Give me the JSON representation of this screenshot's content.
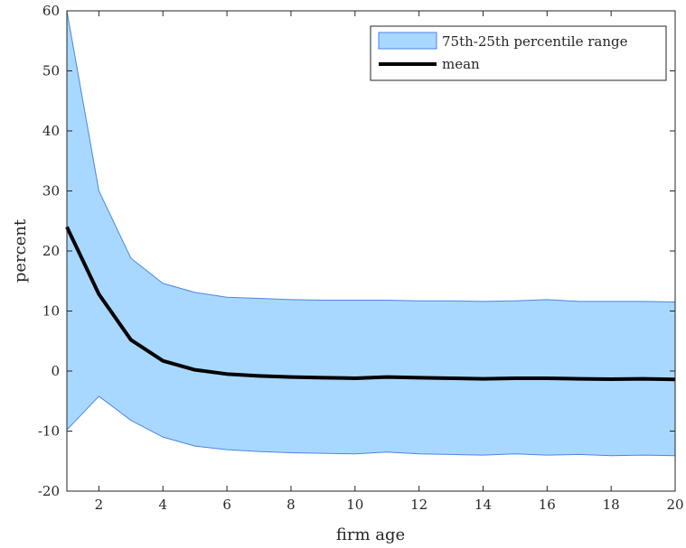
{
  "chart_data": {
    "type": "area",
    "title": "",
    "xlabel": "firm age",
    "ylabel": "percent",
    "xlim": [
      1,
      20
    ],
    "ylim": [
      -20,
      60
    ],
    "xticks": [
      2,
      4,
      6,
      8,
      10,
      12,
      14,
      16,
      18,
      20
    ],
    "yticks": [
      -20,
      -10,
      0,
      10,
      20,
      30,
      40,
      50,
      60
    ],
    "grid": false,
    "legend_position": "top-right",
    "x": [
      1,
      2,
      3,
      4,
      5,
      6,
      7,
      8,
      9,
      10,
      11,
      12,
      13,
      14,
      15,
      16,
      17,
      18,
      19,
      20
    ],
    "band": {
      "name": "75th-25th percentile range",
      "fill_color": "#a8d8ff",
      "edge_color": "#4a86e8",
      "upper": [
        60,
        30,
        18.8,
        14.6,
        13.1,
        12.3,
        12.1,
        11.9,
        11.8,
        11.8,
        11.8,
        11.7,
        11.7,
        11.6,
        11.7,
        11.9,
        11.6,
        11.6,
        11.6,
        11.5
      ],
      "lower": [
        -9.8,
        -4.2,
        -8.2,
        -11,
        -12.5,
        -13.1,
        -13.4,
        -13.6,
        -13.7,
        -13.8,
        -13.5,
        -13.8,
        -13.9,
        -14,
        -13.8,
        -14,
        -13.9,
        -14.1,
        -14,
        -14.1
      ]
    },
    "series": [
      {
        "name": "mean",
        "color": "#000000",
        "values": [
          24,
          12.8,
          5.2,
          1.7,
          0.2,
          -0.5,
          -0.8,
          -1,
          -1.1,
          -1.2,
          -1,
          -1.1,
          -1.2,
          -1.3,
          -1.2,
          -1.2,
          -1.3,
          -1.35,
          -1.3,
          -1.4
        ]
      }
    ]
  }
}
